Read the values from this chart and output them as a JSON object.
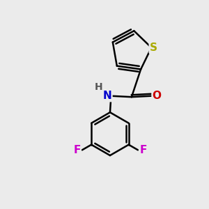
{
  "background_color": "#ebebeb",
  "atom_colors": {
    "S": "#aaaa00",
    "N": "#0000cc",
    "O": "#cc0000",
    "F": "#cc00cc",
    "C": "#000000",
    "H": "#555555"
  },
  "bond_color": "#000000",
  "bond_width": 1.8,
  "font_size": 10,
  "fig_size": [
    3.0,
    3.0
  ],
  "dpi": 100,
  "xlim": [
    0,
    10
  ],
  "ylim": [
    0,
    10
  ]
}
